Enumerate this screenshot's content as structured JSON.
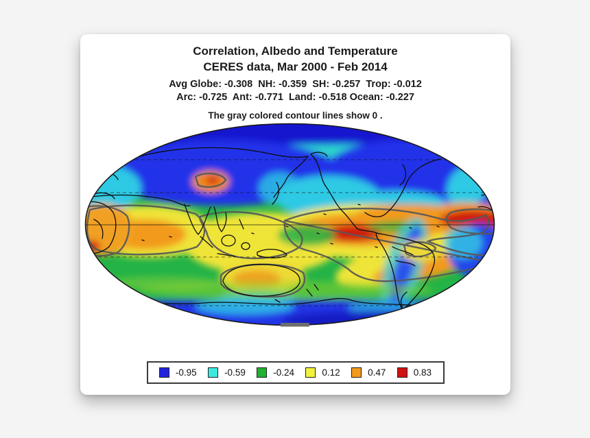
{
  "page": {
    "background": "#f4f4f5",
    "card_background": "#ffffff"
  },
  "figure": {
    "title_line1": "Correlation, Albedo and Temperature",
    "title_line2": "CERES data, Mar 2000 - Feb 2014",
    "stats_line1": "Avg Globe: -0.308  NH: -0.359  SH: -0.257  Trop: -0.012",
    "stats_line2": "Arc: -0.725  Ant: -0.771  Land: -0.518 Ocean: -0.227",
    "note": "The gray colored contour lines show 0 ."
  },
  "legend": {
    "items": [
      {
        "label": "-0.95",
        "color": "#2323dd"
      },
      {
        "label": "-0.59",
        "color": "#3be9e1"
      },
      {
        "label": "-0.24",
        "color": "#1fb32f"
      },
      {
        "label": "0.12",
        "color": "#f2f23e"
      },
      {
        "label": "0.47",
        "color": "#f29a1e"
      },
      {
        "label": "0.83",
        "color": "#cf1212"
      }
    ]
  },
  "chart_data": {
    "type": "heatmap",
    "projection": "mollweide-elliptical-world-map",
    "title": "Correlation, Albedo and Temperature",
    "subtitle": "CERES data, Mar 2000 - Feb 2014",
    "note": "The gray colored contour lines show 0 .",
    "statistics": {
      "Avg Globe": -0.308,
      "NH": -0.359,
      "SH": -0.257,
      "Trop": -0.012,
      "Arc": -0.725,
      "Ant": -0.771,
      "Land": -0.518,
      "Ocean": -0.227
    },
    "colorbar": {
      "values": [
        -0.95,
        -0.59,
        -0.24,
        0.12,
        0.47,
        0.83
      ],
      "colors": [
        "#2323dd",
        "#3be9e1",
        "#1fb32f",
        "#f2f23e",
        "#f29a1e",
        "#cf1212"
      ],
      "range": [
        -1,
        1
      ]
    },
    "zero_contour_color": "#585858",
    "graticule": {
      "equator": "solid",
      "dashed_latitudes_deg": [
        60,
        30,
        -30,
        -60
      ]
    },
    "regions_qualitative": [
      {
        "region": "Arctic / high northern latitudes and Siberia, North America",
        "correlation": "strongly negative (blue, ~ -0.7 to -0.95)"
      },
      {
        "region": "Northern mid-latitude oceans",
        "correlation": "negative (cyan, ~ -0.5)"
      },
      {
        "region": "Mid-latitude and southern oceans",
        "correlation": "weakly negative (green, ~ -0.2)"
      },
      {
        "region": "Tropical Indian Ocean and tropical central Pacific (El Nino tongue)",
        "correlation": "positive (yellow-orange, ~ +0.1 to +0.5)"
      },
      {
        "region": "Central America / Caribbean and equatorial Atlantic",
        "correlation": "strongly positive (red, ~ +0.8)"
      },
      {
        "region": "Australia and subtropical Africa",
        "correlation": "positive (yellow-orange)"
      },
      {
        "region": "South Atlantic and Peru coast",
        "correlation": "negative (blue)"
      },
      {
        "region": "Antarctica",
        "correlation": "strongly negative (blue)"
      }
    ]
  }
}
